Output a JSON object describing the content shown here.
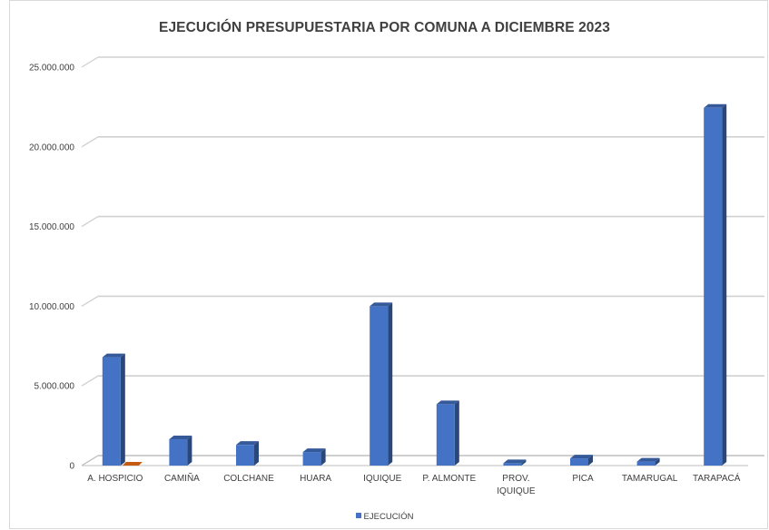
{
  "chart_data": {
    "type": "bar",
    "title": "EJECUCIÓN PRESUPUESTARIA POR COMUNA A DICIEMBRE 2023",
    "categories": [
      [
        "A. HOSPICIO"
      ],
      [
        "CAMIÑA"
      ],
      [
        "COLCHANE"
      ],
      [
        "HUARA"
      ],
      [
        "IQUIQUE"
      ],
      [
        "P. ALMONTE"
      ],
      [
        "PROV.",
        "IQUIQUE"
      ],
      [
        "PICA"
      ],
      [
        "TAMARUGAL"
      ],
      [
        "TARAPACÁ"
      ]
    ],
    "series": [
      {
        "name": "EJECUCIÓN",
        "color": "#4472c4",
        "values": [
          6800000,
          1650000,
          1300000,
          850000,
          10000000,
          3850000,
          150000,
          450000,
          250000,
          22450000
        ]
      },
      {
        "color": "#c55a11",
        "values": [
          20000,
          0,
          0,
          0,
          0,
          0,
          0,
          0,
          0,
          0
        ]
      }
    ],
    "yticks": [
      "0",
      "5.000.000",
      "10.000.000",
      "15.000.000",
      "20.000.000",
      "25.000.000"
    ],
    "ylim": [
      0,
      25000000
    ],
    "grid": true,
    "legend": "bottom"
  }
}
